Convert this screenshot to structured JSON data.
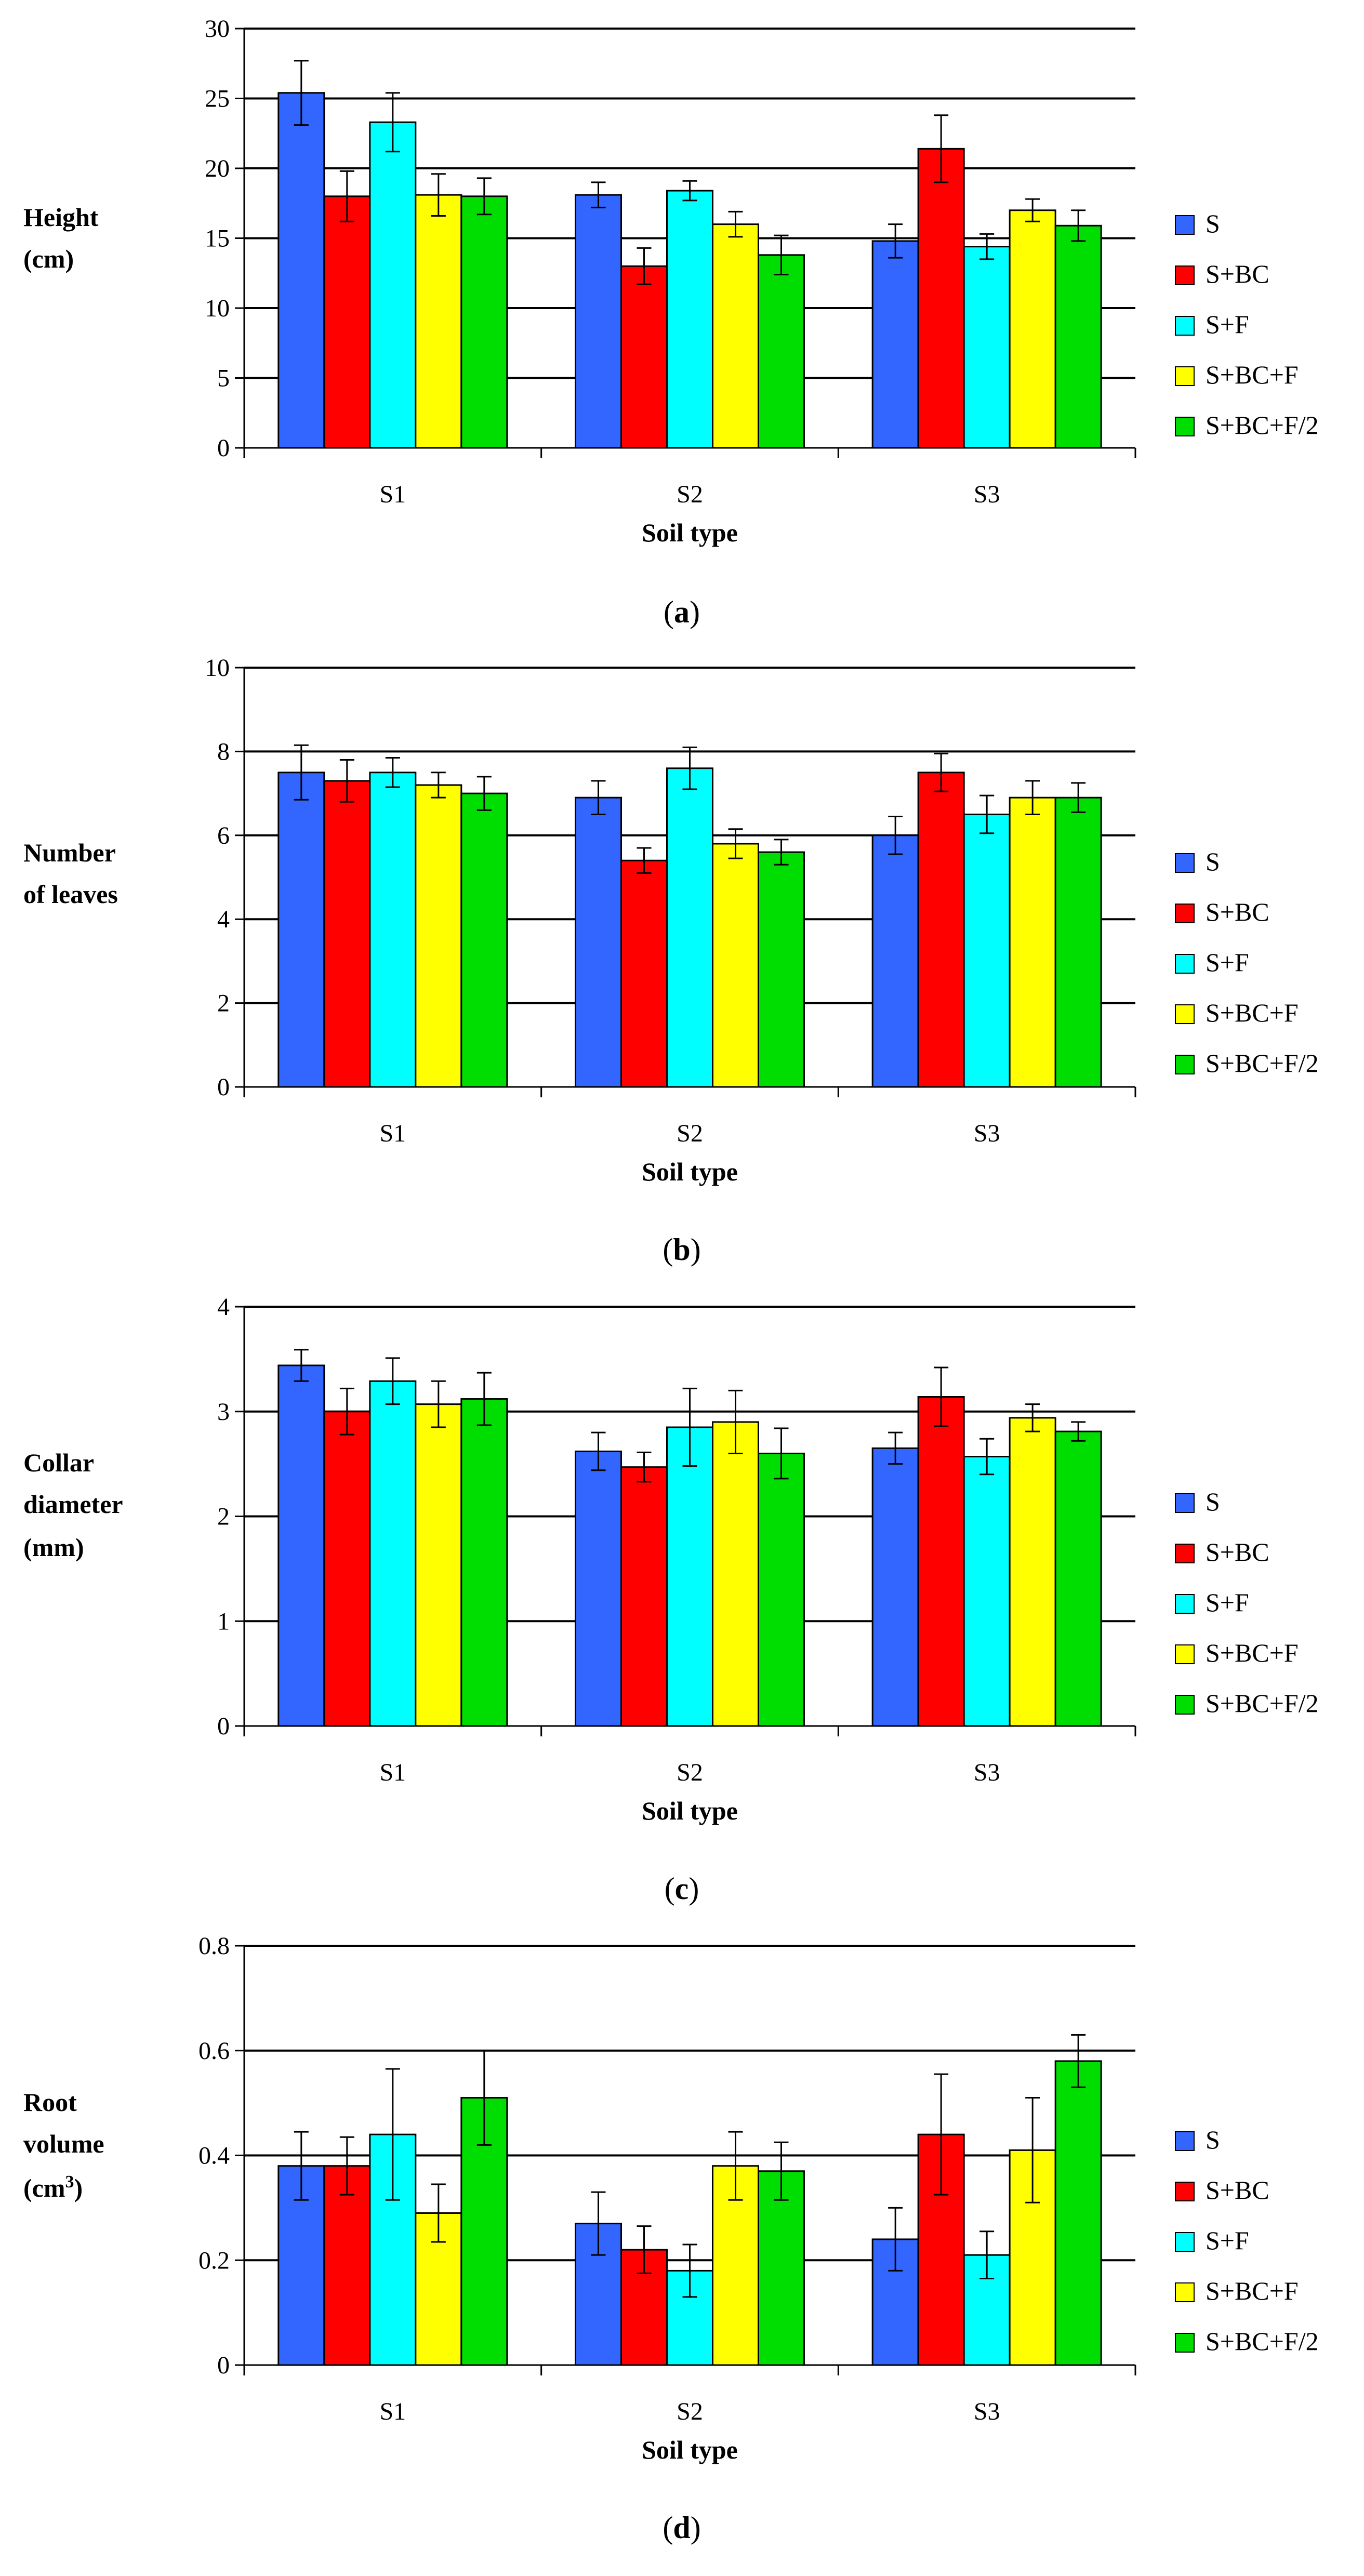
{
  "colors": {
    "S": "#3366ff",
    "S+BC": "#ff0000",
    "S+F": "#00ffff",
    "S+BC+F": "#ffff00",
    "S+BC+F/2": "#00dd00"
  },
  "chart_data": [
    {
      "type": "bar",
      "panel_label": {
        "open": "(",
        "letter": "a",
        "close": ")"
      },
      "ylabel": [
        "Height",
        "(cm)"
      ],
      "xlabel": "Soil type",
      "categories": [
        "S1",
        "S2",
        "S3"
      ],
      "ylim": [
        0,
        30
      ],
      "yticks": [
        "0",
        "5",
        "10",
        "15",
        "20",
        "25",
        "30"
      ],
      "grid": true,
      "legend_position": "right",
      "series": [
        {
          "name": "S",
          "values": [
            25.4,
            18.1,
            14.8
          ],
          "errors": [
            2.3,
            0.9,
            1.2
          ]
        },
        {
          "name": "S+BC",
          "values": [
            18.0,
            13.0,
            21.4
          ],
          "errors": [
            1.8,
            1.3,
            2.4
          ]
        },
        {
          "name": "S+F",
          "values": [
            23.3,
            18.4,
            14.4
          ],
          "errors": [
            2.1,
            0.7,
            0.9
          ]
        },
        {
          "name": "S+BC+F",
          "values": [
            18.1,
            16.0,
            17.0
          ],
          "errors": [
            1.5,
            0.9,
            0.8
          ]
        },
        {
          "name": "S+BC+F/2",
          "values": [
            18.0,
            13.8,
            15.9
          ],
          "errors": [
            1.3,
            1.4,
            1.1
          ]
        }
      ]
    },
    {
      "type": "bar",
      "panel_label": {
        "open": "(",
        "letter": "b",
        "close": ")"
      },
      "ylabel": [
        "Number",
        "of leaves"
      ],
      "xlabel": "Soil type",
      "categories": [
        "S1",
        "S2",
        "S3"
      ],
      "ylim": [
        0,
        10
      ],
      "yticks": [
        "0",
        "2",
        "4",
        "6",
        "8",
        "10"
      ],
      "grid": true,
      "legend_position": "right",
      "series": [
        {
          "name": "S",
          "values": [
            7.5,
            6.9,
            6.0
          ],
          "errors": [
            0.65,
            0.4,
            0.45
          ]
        },
        {
          "name": "S+BC",
          "values": [
            7.3,
            5.4,
            7.5
          ],
          "errors": [
            0.5,
            0.3,
            0.45
          ]
        },
        {
          "name": "S+F",
          "values": [
            7.5,
            7.6,
            6.5
          ],
          "errors": [
            0.35,
            0.5,
            0.45
          ]
        },
        {
          "name": "S+BC+F",
          "values": [
            7.2,
            5.8,
            6.9
          ],
          "errors": [
            0.3,
            0.35,
            0.4
          ]
        },
        {
          "name": "S+BC+F/2",
          "values": [
            7.0,
            5.6,
            6.9
          ],
          "errors": [
            0.4,
            0.3,
            0.35
          ]
        }
      ]
    },
    {
      "type": "bar",
      "panel_label": {
        "open": "(",
        "letter": "c",
        "close": ")"
      },
      "ylabel": [
        "Collar",
        "diameter",
        "(mm)"
      ],
      "xlabel": "Soil type",
      "categories": [
        "S1",
        "S2",
        "S3"
      ],
      "ylim": [
        0,
        4
      ],
      "yticks": [
        "0",
        "1",
        "2",
        "3",
        "4"
      ],
      "grid": true,
      "legend_position": "right",
      "series": [
        {
          "name": "S",
          "values": [
            3.44,
            2.62,
            2.65
          ],
          "errors": [
            0.15,
            0.18,
            0.15
          ]
        },
        {
          "name": "S+BC",
          "values": [
            3.0,
            2.47,
            3.14
          ],
          "errors": [
            0.22,
            0.14,
            0.28
          ]
        },
        {
          "name": "S+F",
          "values": [
            3.29,
            2.85,
            2.57
          ],
          "errors": [
            0.22,
            0.37,
            0.17
          ]
        },
        {
          "name": "S+BC+F",
          "values": [
            3.07,
            2.9,
            2.94
          ],
          "errors": [
            0.22,
            0.3,
            0.13
          ]
        },
        {
          "name": "S+BC+F/2",
          "values": [
            3.12,
            2.6,
            2.81
          ],
          "errors": [
            0.25,
            0.24,
            0.09
          ]
        }
      ]
    },
    {
      "type": "bar",
      "panel_label": {
        "open": "(",
        "letter": "d",
        "close": ")"
      },
      "ylabel": [
        "Root",
        "volume",
        "(cm",
        "3",
        ")"
      ],
      "xlabel": "Soil type",
      "categories": [
        "S1",
        "S2",
        "S3"
      ],
      "ylim": [
        0,
        0.8
      ],
      "yticks": [
        "0",
        "0.2",
        "0.4",
        "0.6",
        "0.8"
      ],
      "grid": true,
      "legend_position": "right",
      "series": [
        {
          "name": "S",
          "values": [
            0.38,
            0.27,
            0.24
          ],
          "errors": [
            0.065,
            0.06,
            0.06
          ]
        },
        {
          "name": "S+BC",
          "values": [
            0.38,
            0.22,
            0.44
          ],
          "errors": [
            0.055,
            0.045,
            0.115
          ]
        },
        {
          "name": "S+F",
          "values": [
            0.44,
            0.18,
            0.21
          ],
          "errors": [
            0.125,
            0.05,
            0.045
          ]
        },
        {
          "name": "S+BC+F",
          "values": [
            0.29,
            0.38,
            0.41
          ],
          "errors": [
            0.055,
            0.065,
            0.1
          ]
        },
        {
          "name": "S+BC+F/2",
          "values": [
            0.51,
            0.37,
            0.58
          ],
          "errors": [
            0.09,
            0.055,
            0.05
          ]
        }
      ]
    }
  ]
}
